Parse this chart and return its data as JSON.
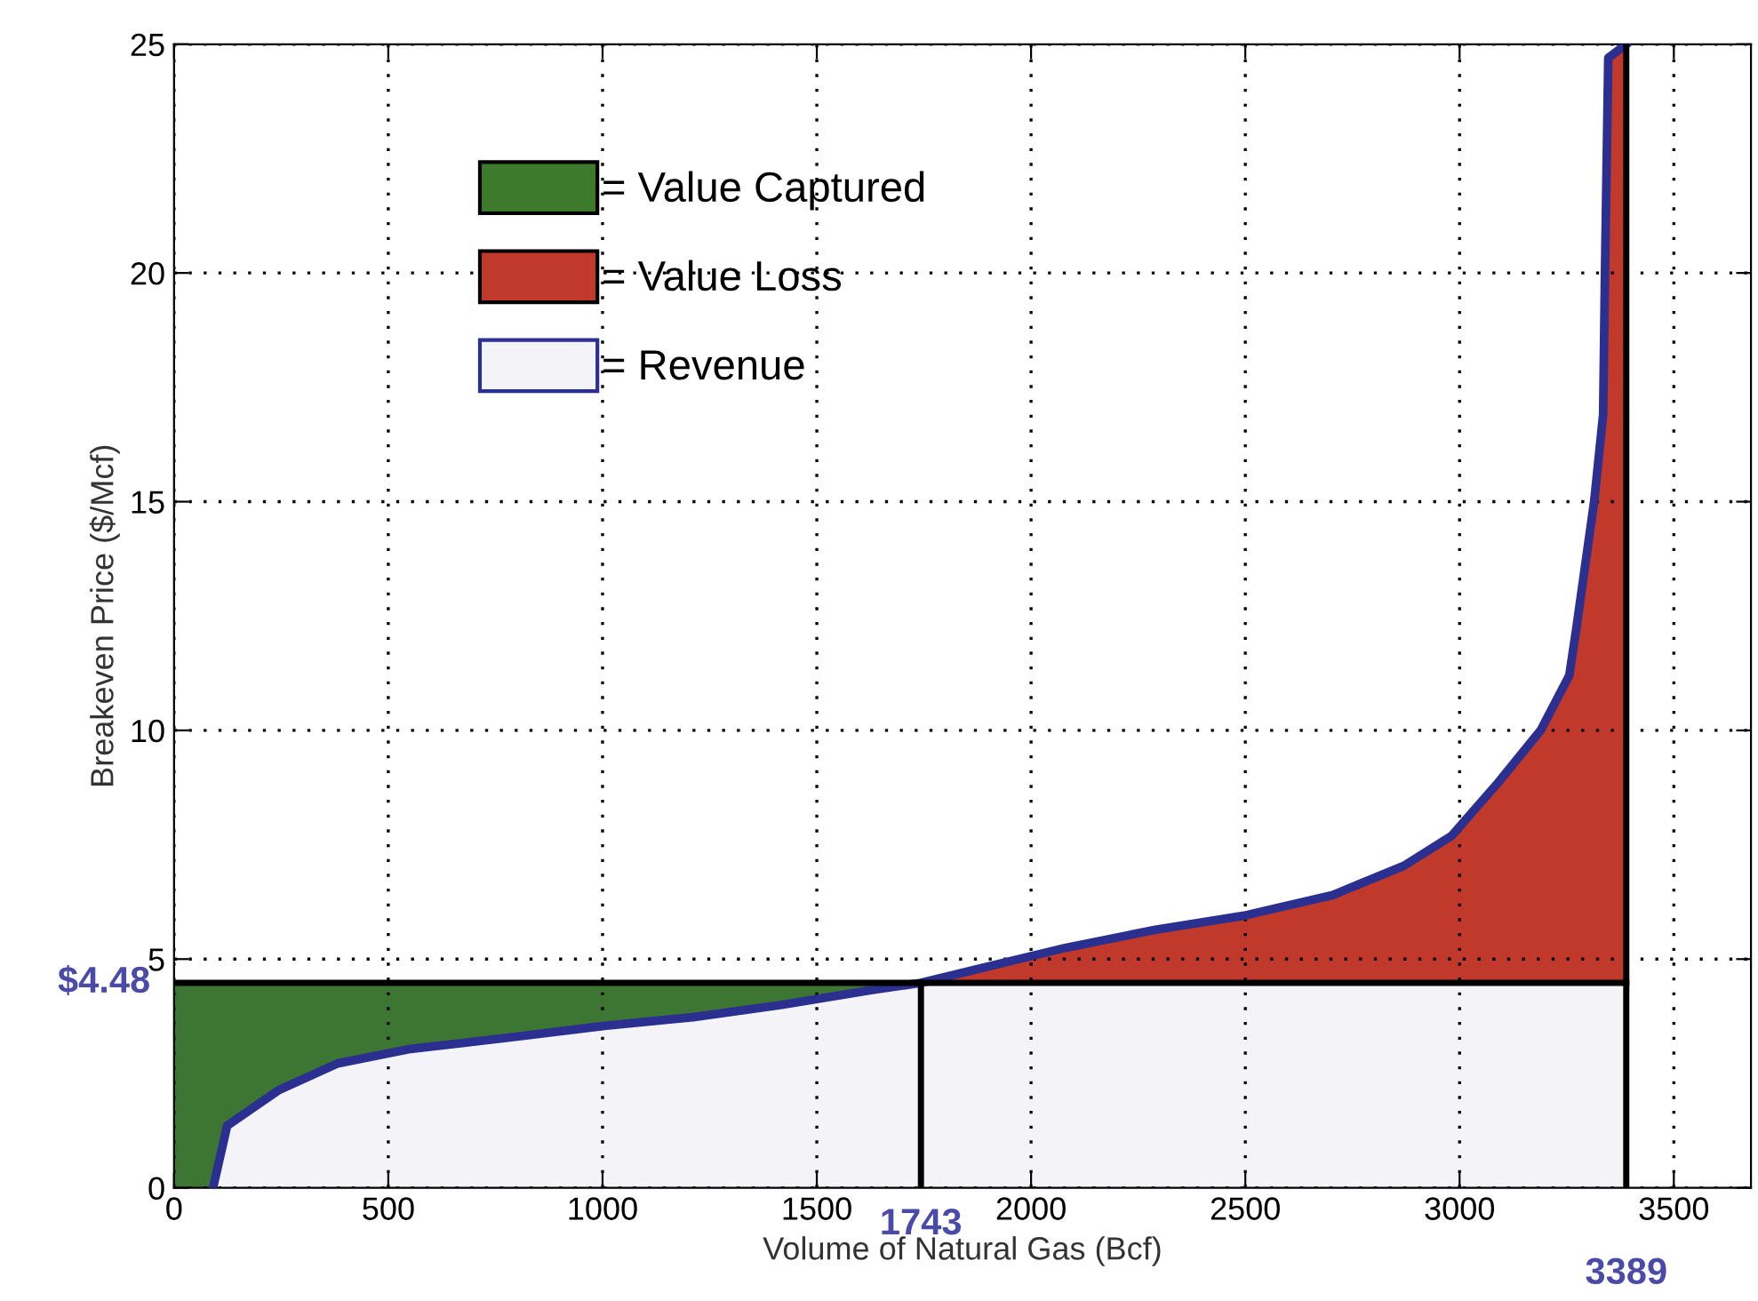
{
  "chart_data": {
    "type": "line",
    "xlabel": "Volume of Natural Gas (Bcf)",
    "ylabel": "Breakeven Price ($/Mcf)",
    "xlim": [
      0,
      3680
    ],
    "ylim": [
      0,
      25
    ],
    "xticks": [
      0,
      500,
      1000,
      1500,
      2000,
      2500,
      3000,
      3500
    ],
    "yticks": [
      0,
      5,
      10,
      15,
      20,
      25
    ],
    "grid": true,
    "legend": "top left",
    "series": [
      {
        "type": "area",
        "name": "= Value Captured",
        "color": "#3e7a2c",
        "x": [
          0,
          91,
          124,
          245,
          382,
          547,
          796,
          1004,
          1211,
          1418,
          1626,
          1743
        ],
        "values": [
          4.48,
          4.48,
          4.48,
          4.48,
          4.48,
          4.48,
          4.48,
          4.48,
          4.48,
          4.48,
          4.48,
          4.48
        ]
      },
      {
        "type": "area",
        "name": "= Value Loss",
        "color": "#c0392b",
        "x": [
          1743,
          1875,
          2082,
          2290,
          2497,
          2704,
          2870,
          2982,
          3090,
          3189,
          3256,
          3272,
          3314,
          3335,
          3339,
          3347,
          3389
        ],
        "values": [
          4.48,
          4.78,
          5.25,
          5.64,
          5.95,
          6.4,
          7.04,
          7.7,
          8.86,
          10.0,
          11.2,
          12.2,
          15.0,
          16.9,
          19.8,
          24.7,
          25
        ]
      },
      {
        "color": "#2b2f8f",
        "x": [
          91,
          124,
          245,
          382,
          547,
          796,
          1004,
          1211,
          1418,
          1626,
          1743,
          1875,
          2082,
          2290,
          2497,
          2704,
          2870,
          2982,
          3090,
          3189,
          3256,
          3272,
          3314,
          3335,
          3339,
          3347,
          3389
        ],
        "values": [
          0,
          1.36,
          2.14,
          2.72,
          3.03,
          3.3,
          3.54,
          3.73,
          4.0,
          4.32,
          4.48,
          4.78,
          5.25,
          5.64,
          5.95,
          6.4,
          7.04,
          7.7,
          8.86,
          10.0,
          11.2,
          12.2,
          15.0,
          16.9,
          19.8,
          24.7,
          25
        ]
      }
    ],
    "bands": [
      {
        "axis": "y",
        "from": 0,
        "to": 4.48,
        "label": "= Revenue",
        "color": "#2b2f8f"
      }
    ],
    "ref_lines": [
      {
        "axis": "y",
        "value": 4.48,
        "label": "$4.48",
        "color": "#000000"
      },
      {
        "axis": "x",
        "value": 1743,
        "label": "1743",
        "color": "#000000"
      },
      {
        "axis": "x",
        "value": 3389,
        "label": "3389",
        "color": "#000000"
      }
    ]
  }
}
